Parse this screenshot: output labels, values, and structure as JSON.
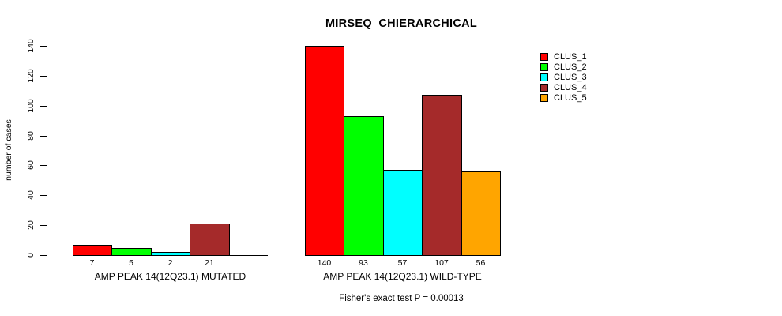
{
  "title": "MIRSEQ_CHIERARCHICAL",
  "chart_data": {
    "type": "bar",
    "title": "MIRSEQ_CHIERARCHICAL",
    "xlabel": "",
    "ylabel": "number of cases",
    "ylim": [
      0,
      140
    ],
    "yticks": [
      0,
      20,
      40,
      60,
      80,
      100,
      120,
      140
    ],
    "grid": false,
    "legend": {
      "position": "top-right",
      "entries": [
        {
          "label": "CLUS_1",
          "color": "#FF0000"
        },
        {
          "label": "CLUS_2",
          "color": "#00FF00"
        },
        {
          "label": "CLUS_3",
          "color": "#00FFFF"
        },
        {
          "label": "CLUS_4",
          "color": "#A52A2A"
        },
        {
          "label": "CLUS_5",
          "color": "#FFA500"
        }
      ]
    },
    "groups": [
      {
        "label": "AMP PEAK 14(12Q23.1) MUTATED",
        "values": [
          7,
          5,
          2,
          21,
          0
        ],
        "bar_labels": [
          "7",
          "5",
          "2",
          "21",
          ""
        ]
      },
      {
        "label": "AMP PEAK 14(12Q23.1) WILD-TYPE",
        "values": [
          140,
          93,
          57,
          107,
          56
        ],
        "bar_labels": [
          "140",
          "93",
          "57",
          "107",
          "56"
        ]
      }
    ],
    "annotation": "Fisher's exact test P = 0.00013"
  }
}
